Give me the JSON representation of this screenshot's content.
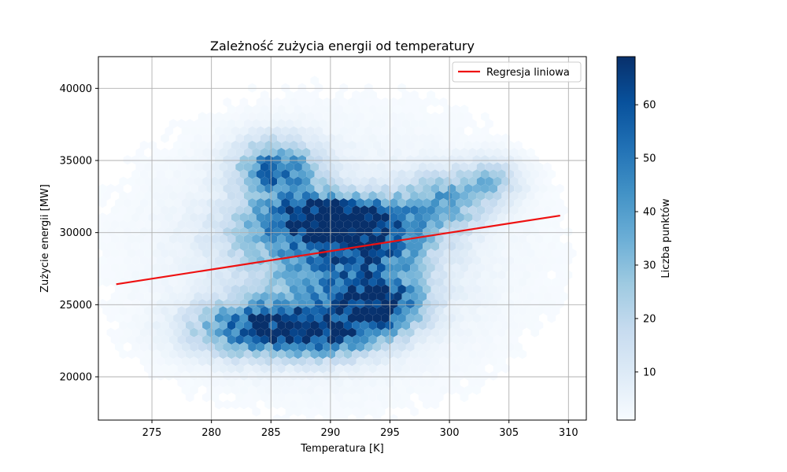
{
  "chart_data": {
    "type": "heatmap",
    "subtype": "hexbin",
    "title": "Zależność zużycia energii od temperatury",
    "xlabel": "Temperatura [K]",
    "ylabel": "Zużycie energii [MW]",
    "xlim": [
      270.5,
      311.5
    ],
    "ylim": [
      17000,
      42200
    ],
    "x_ticks": [
      275,
      280,
      285,
      290,
      295,
      300,
      305,
      310
    ],
    "y_ticks": [
      20000,
      25000,
      30000,
      35000,
      40000
    ],
    "grid": true,
    "colormap": "Blues",
    "colorbar": {
      "label": "Liczba punktów",
      "min": 1,
      "max": 69,
      "ticks": [
        10,
        20,
        30,
        40,
        50,
        60
      ]
    },
    "density_clusters": [
      {
        "x": 285.5,
        "y": 34300,
        "sx": 2.3,
        "sy": 1400,
        "peak": 50
      },
      {
        "x": 290.5,
        "y": 31100,
        "sx": 3.6,
        "sy": 1000,
        "peak": 58
      },
      {
        "x": 287.5,
        "y": 29700,
        "sx": 4.2,
        "sy": 1700,
        "peak": 34
      },
      {
        "x": 294.0,
        "y": 29300,
        "sx": 3.2,
        "sy": 1500,
        "peak": 40
      },
      {
        "x": 284.0,
        "y": 23400,
        "sx": 3.6,
        "sy": 1300,
        "peak": 56
      },
      {
        "x": 290.0,
        "y": 23000,
        "sx": 3.0,
        "sy": 1100,
        "peak": 46
      },
      {
        "x": 294.5,
        "y": 25000,
        "sx": 2.2,
        "sy": 1300,
        "peak": 48
      },
      {
        "x": 291.0,
        "y": 26000,
        "sx": 4.0,
        "sy": 1600,
        "peak": 32
      },
      {
        "x": 299.5,
        "y": 32200,
        "sx": 2.5,
        "sy": 1300,
        "peak": 32
      },
      {
        "x": 303.5,
        "y": 33600,
        "sx": 1.8,
        "sy": 1000,
        "peak": 22
      },
      {
        "x": 290.0,
        "y": 28500,
        "sx": 10.0,
        "sy": 5800,
        "peak": 9
      }
    ],
    "series": [
      {
        "name": "Regresja liniowa",
        "type": "line",
        "color": "#ee1111",
        "x": [
          272.0,
          309.3
        ],
        "y": [
          26420,
          31180
        ]
      }
    ],
    "legend": {
      "position": "top-right"
    }
  }
}
